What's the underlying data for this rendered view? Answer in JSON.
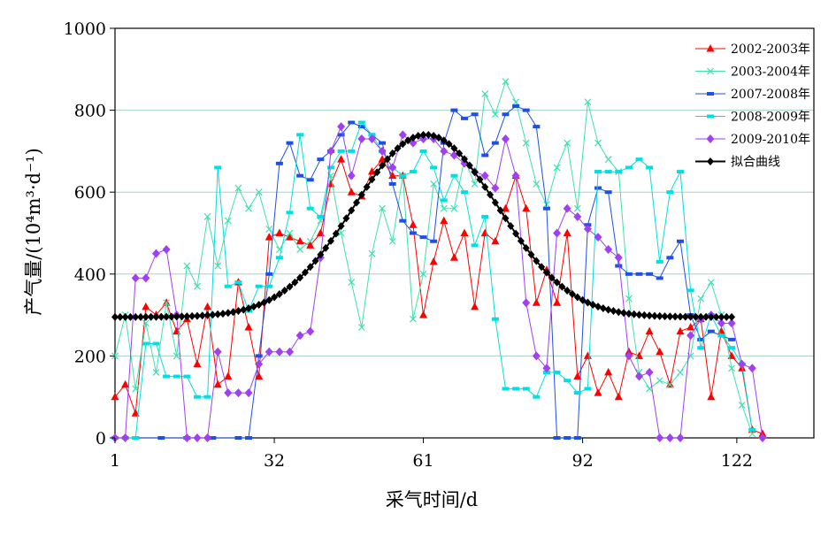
{
  "chart_data": {
    "type": "line",
    "xlabel": "采气时间/d",
    "ylabel": "产气量/(10⁴m³·d⁻¹)",
    "xticks": [
      "1",
      "32",
      "61",
      "92",
      "122"
    ],
    "yticks": [
      "0",
      "200",
      "400",
      "600",
      "800",
      "1000"
    ],
    "xlim": [
      1,
      137
    ],
    "ylim": [
      0,
      1000
    ],
    "grid": "horizontal",
    "legend_position": "top-right",
    "series": [
      {
        "name": "2002-2003年",
        "color": "#ff0000",
        "marker": "triangle",
        "x": [
          1,
          3,
          5,
          7,
          9,
          11,
          13,
          15,
          17,
          19,
          21,
          23,
          25,
          27,
          29,
          31,
          33,
          35,
          37,
          39,
          41,
          43,
          45,
          47,
          49,
          51,
          53,
          55,
          57,
          59,
          61,
          63,
          65,
          67,
          69,
          71,
          73,
          75,
          77,
          79,
          81,
          83,
          85,
          87,
          89,
          91,
          93,
          95,
          97,
          99,
          101,
          103,
          105,
          107,
          109,
          111,
          113,
          115,
          117,
          119,
          121,
          123,
          125,
          127
        ],
        "y": [
          100,
          130,
          60,
          320,
          300,
          330,
          260,
          290,
          180,
          320,
          130,
          150,
          380,
          270,
          150,
          490,
          500,
          490,
          480,
          470,
          500,
          620,
          680,
          600,
          590,
          650,
          680,
          640,
          640,
          520,
          300,
          430,
          530,
          440,
          500,
          320,
          500,
          480,
          560,
          640,
          560,
          330,
          410,
          330,
          500,
          150,
          200,
          110,
          160,
          100,
          210,
          200,
          260,
          210,
          130,
          260,
          270,
          290,
          100,
          260,
          200,
          170,
          20,
          10
        ]
      },
      {
        "name": "2003-2004年",
        "color": "#40e0b0",
        "marker": "x",
        "x": [
          1,
          3,
          5,
          7,
          9,
          11,
          13,
          15,
          17,
          19,
          21,
          23,
          25,
          27,
          29,
          31,
          33,
          35,
          37,
          39,
          41,
          43,
          45,
          47,
          49,
          51,
          53,
          55,
          57,
          59,
          61,
          63,
          65,
          67,
          69,
          71,
          73,
          75,
          77,
          79,
          81,
          83,
          85,
          87,
          89,
          91,
          93,
          95,
          97,
          99,
          101,
          103,
          105,
          107,
          109,
          111,
          113,
          115,
          117,
          119,
          121,
          123,
          125
        ],
        "y": [
          200,
          300,
          120,
          280,
          160,
          330,
          200,
          420,
          370,
          540,
          420,
          530,
          610,
          560,
          600,
          510,
          460,
          500,
          460,
          480,
          530,
          640,
          500,
          380,
          270,
          450,
          560,
          480,
          640,
          290,
          400,
          620,
          560,
          560,
          680,
          620,
          840,
          790,
          870,
          820,
          720,
          620,
          570,
          660,
          720,
          560,
          820,
          720,
          680,
          650,
          340,
          160,
          120,
          140,
          130,
          160,
          200,
          340,
          380,
          300,
          170,
          80,
          10
        ]
      },
      {
        "name": "2007-2008年",
        "color": "#1e50e6",
        "marker": "dash",
        "x": [
          1,
          5,
          10,
          15,
          20,
          25,
          27,
          29,
          31,
          33,
          35,
          37,
          39,
          41,
          43,
          45,
          47,
          49,
          51,
          53,
          55,
          57,
          59,
          61,
          63,
          65,
          67,
          69,
          71,
          73,
          75,
          77,
          79,
          81,
          83,
          85,
          87,
          89,
          91,
          93,
          95,
          97,
          99,
          101,
          103,
          105,
          107,
          109,
          111,
          113,
          115,
          117,
          119,
          121
        ],
        "y": [
          0,
          0,
          0,
          0,
          0,
          0,
          0,
          200,
          400,
          670,
          720,
          640,
          630,
          680,
          700,
          740,
          770,
          760,
          740,
          720,
          620,
          530,
          500,
          490,
          480,
          720,
          800,
          780,
          790,
          690,
          720,
          790,
          810,
          800,
          760,
          560,
          0,
          0,
          0,
          520,
          610,
          600,
          420,
          400,
          400,
          400,
          390,
          440,
          480,
          300,
          240,
          260,
          250,
          240
        ]
      },
      {
        "name": "2008-2009年",
        "color": "#00e0e0",
        "marker": "dash",
        "x": [
          1,
          3,
          5,
          7,
          9,
          11,
          13,
          15,
          17,
          19,
          21,
          23,
          25,
          27,
          29,
          31,
          33,
          35,
          37,
          39,
          41,
          43,
          45,
          47,
          49,
          51,
          53,
          55,
          57,
          59,
          61,
          63,
          65,
          67,
          69,
          71,
          73,
          75,
          77,
          79,
          81,
          83,
          85,
          87,
          89,
          91,
          93,
          95,
          97,
          99,
          101,
          103,
          105,
          107,
          109,
          111,
          113,
          115,
          117,
          119,
          121,
          123,
          125
        ],
        "y": [
          0,
          0,
          0,
          230,
          230,
          150,
          150,
          150,
          100,
          100,
          660,
          370,
          380,
          310,
          370,
          370,
          440,
          550,
          740,
          560,
          540,
          660,
          700,
          700,
          770,
          740,
          700,
          660,
          640,
          650,
          700,
          660,
          580,
          640,
          600,
          470,
          540,
          290,
          120,
          120,
          120,
          100,
          160,
          160,
          140,
          110,
          120,
          650,
          650,
          650,
          660,
          680,
          660,
          430,
          600,
          650,
          360,
          220,
          300,
          250,
          220,
          180,
          20
        ]
      },
      {
        "name": "2009-2010年",
        "color": "#a040f0",
        "marker": "diamond",
        "x": [
          1,
          3,
          5,
          7,
          9,
          11,
          13,
          15,
          17,
          19,
          21,
          23,
          25,
          27,
          29,
          31,
          33,
          35,
          37,
          39,
          41,
          43,
          45,
          47,
          49,
          51,
          53,
          55,
          57,
          59,
          61,
          63,
          65,
          67,
          69,
          71,
          73,
          75,
          77,
          79,
          81,
          83,
          85,
          87,
          89,
          91,
          93,
          95,
          97,
          99,
          101,
          103,
          105,
          107,
          109,
          111,
          113,
          115,
          117,
          119,
          121,
          123,
          125,
          127
        ],
        "y": [
          0,
          0,
          390,
          390,
          450,
          460,
          300,
          0,
          0,
          0,
          210,
          110,
          110,
          110,
          180,
          210,
          210,
          210,
          250,
          260,
          440,
          700,
          760,
          640,
          730,
          730,
          700,
          660,
          740,
          720,
          730,
          730,
          700,
          690,
          670,
          650,
          640,
          610,
          730,
          640,
          330,
          200,
          170,
          500,
          560,
          540,
          510,
          490,
          460,
          440,
          200,
          150,
          160,
          0,
          0,
          0,
          250,
          290,
          300,
          280,
          280,
          180,
          170,
          0
        ]
      },
      {
        "name": "拟合曲线",
        "color": "#000000",
        "marker": "diamond-thick",
        "gaussian": {
          "baseline": 295,
          "peak": 740,
          "center": 61.5,
          "sigma": 14,
          "x_from": 1,
          "x_to": 121
        }
      }
    ]
  }
}
